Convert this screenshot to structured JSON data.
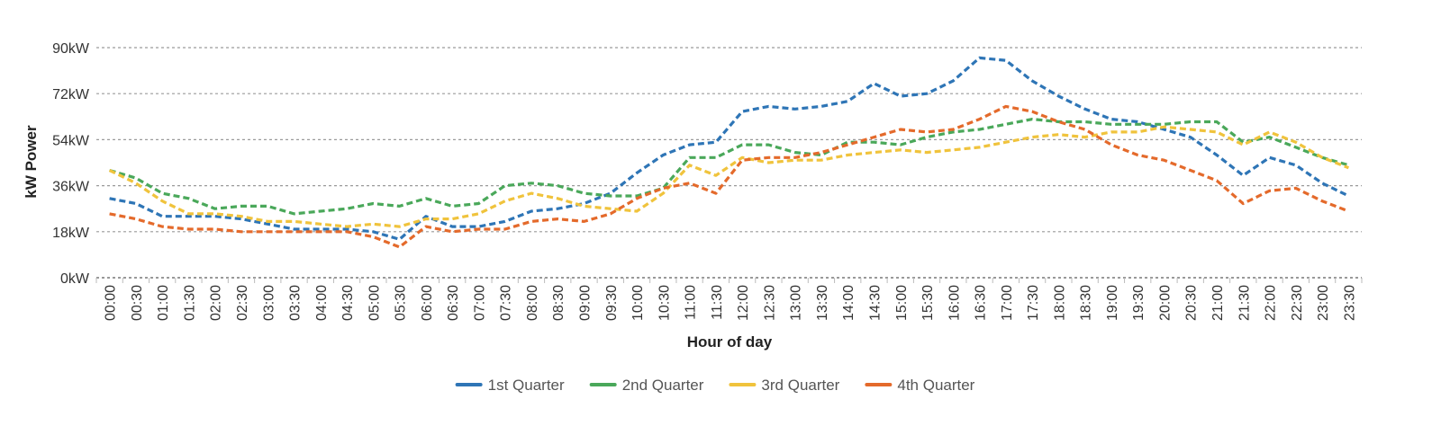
{
  "chart_data": {
    "type": "line",
    "xlabel": "Hour of day",
    "ylabel": "kW Power",
    "ylim": [
      0,
      90
    ],
    "yticks": [
      0,
      18,
      36,
      54,
      72,
      90
    ],
    "ytick_labels": [
      "0kW",
      "18kW",
      "36kW",
      "54kW",
      "72kW",
      "90kW"
    ],
    "grid": true,
    "line_style": "dashed",
    "legend_position": "bottom",
    "categories": [
      "00:00",
      "00:30",
      "01:00",
      "01:30",
      "02:00",
      "02:30",
      "03:00",
      "03:30",
      "04:00",
      "04:30",
      "05:00",
      "05:30",
      "06:00",
      "06:30",
      "07:00",
      "07:30",
      "08:00",
      "08:30",
      "09:00",
      "09:30",
      "10:00",
      "10:30",
      "11:00",
      "11:30",
      "12:00",
      "12:30",
      "13:00",
      "13:30",
      "14:00",
      "14:30",
      "15:00",
      "15:30",
      "16:00",
      "16:30",
      "17:00",
      "17:30",
      "18:00",
      "18:30",
      "19:00",
      "19:30",
      "20:00",
      "20:30",
      "21:00",
      "21:30",
      "22:00",
      "22:30",
      "23:00",
      "23:30"
    ],
    "series": [
      {
        "name": "1st Quarter",
        "color": "#2e75b6",
        "values": [
          31,
          29,
          24,
          24,
          24,
          23,
          21,
          19,
          19,
          19,
          18,
          15,
          24,
          20,
          20,
          22,
          26,
          27,
          29,
          33,
          41,
          48,
          52,
          53,
          65,
          67,
          66,
          67,
          69,
          76,
          71,
          72,
          77,
          86,
          85,
          77,
          71,
          66,
          62,
          61,
          58,
          55,
          48,
          40,
          47,
          44,
          37,
          32
        ]
      },
      {
        "name": "2nd Quarter",
        "color": "#4aa85a",
        "values": [
          42,
          39,
          33,
          31,
          27,
          28,
          28,
          25,
          26,
          27,
          29,
          28,
          31,
          28,
          29,
          36,
          37,
          36,
          33,
          32,
          32,
          35,
          47,
          47,
          52,
          52,
          49,
          48,
          53,
          53,
          52,
          55,
          57,
          58,
          60,
          62,
          61,
          61,
          60,
          60,
          60,
          61,
          61,
          53,
          55,
          51,
          47,
          44
        ]
      },
      {
        "name": "3rd Quarter",
        "color": "#f0c33c",
        "values": [
          42,
          37,
          30,
          25,
          25,
          24,
          22,
          22,
          21,
          20,
          21,
          20,
          23,
          23,
          25,
          30,
          33,
          31,
          28,
          27,
          26,
          33,
          44,
          40,
          47,
          45,
          46,
          46,
          48,
          49,
          50,
          49,
          50,
          51,
          53,
          55,
          56,
          55,
          57,
          57,
          59,
          58,
          57,
          52,
          57,
          53,
          47,
          43
        ]
      },
      {
        "name": "4th Quarter",
        "color": "#e46a2b",
        "values": [
          25,
          23,
          20,
          19,
          19,
          18,
          18,
          18,
          18,
          18,
          16,
          12,
          20,
          18,
          19,
          19,
          22,
          23,
          22,
          25,
          31,
          35,
          37,
          33,
          46,
          47,
          47,
          49,
          52,
          55,
          58,
          57,
          58,
          62,
          67,
          65,
          61,
          58,
          52,
          48,
          46,
          42,
          38,
          29,
          34,
          35,
          30,
          26
        ]
      }
    ]
  }
}
